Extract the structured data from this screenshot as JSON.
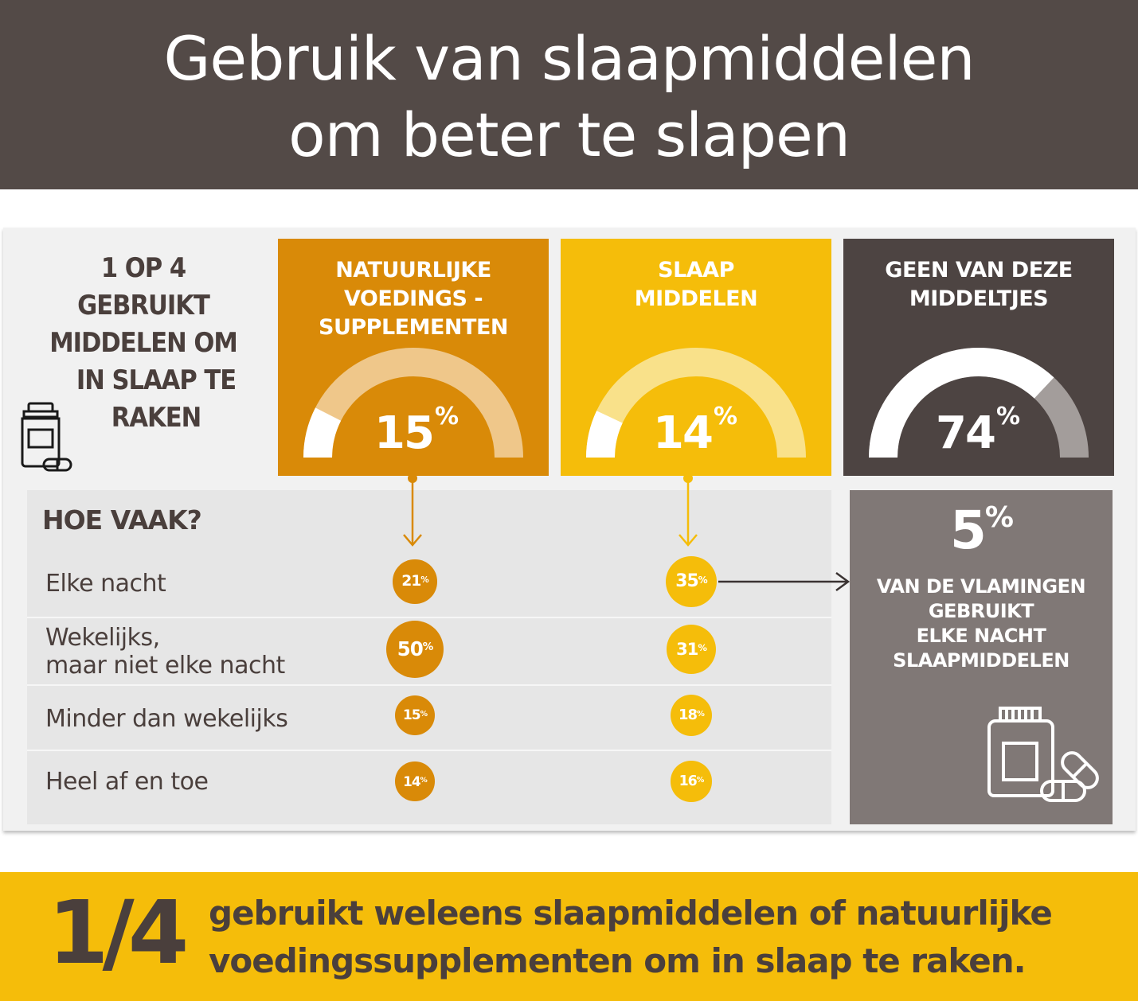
{
  "header": {
    "title_line1": "Gebruik van slaapmiddelen",
    "title_line2": "om beter te slapen"
  },
  "intro": {
    "lines": [
      "1 OP 4",
      "GEBRUIKT",
      "MIDDELEN OM",
      "IN SLAAP TE",
      "RAKEN"
    ]
  },
  "frequency": {
    "title": "HOE VAAK?",
    "rows": [
      "Elke nacht",
      "Wekelijks,",
      "maar niet elke nacht",
      "Minder dan wekelijks",
      "Heel af en toe"
    ]
  },
  "side": {
    "value": "5",
    "unit": "%",
    "lines": [
      "VAN DE VLAMINGEN",
      "GEBRUIKT",
      "ELKE NACHT",
      "SLAAPMIDDELEN"
    ]
  },
  "banner": {
    "fraction": "1/4",
    "line1": "gebruikt weleens slaapmiddelen of natuurlijke",
    "line2": "voedingssupplementen om in slaap te raken."
  },
  "colors": {
    "dark": "#534a47",
    "orange": "#d98a08",
    "yellow": "#f5bd0a",
    "grey": "#807876",
    "orange_light": "#efc78a",
    "yellow_light": "#f9e18a"
  },
  "icons": [
    "pill-bottle-icon",
    "pill-bottle-large-icon",
    "arrow-down-icon",
    "arrow-right-icon"
  ],
  "chart_data": [
    {
      "type": "gauge",
      "categories": [
        [
          "NATUURLIJKE",
          "VOEDINGS -",
          "SUPPLEMENTEN"
        ],
        [
          "SLAAP",
          "MIDDELEN"
        ],
        [
          "GEEN VAN DEZE",
          "MIDDELTJES"
        ]
      ],
      "values": [
        15,
        14,
        74
      ],
      "unit": "%"
    },
    {
      "type": "bubble",
      "title": "HOE VAAK?",
      "categories": [
        "Elke nacht",
        "Wekelijks, maar niet elke nacht",
        "Minder dan wekelijks",
        "Heel af en toe"
      ],
      "series": [
        {
          "values": [
            21,
            50,
            15,
            14
          ]
        },
        {
          "values": [
            35,
            31,
            18,
            16
          ]
        }
      ],
      "unit": "%"
    }
  ]
}
